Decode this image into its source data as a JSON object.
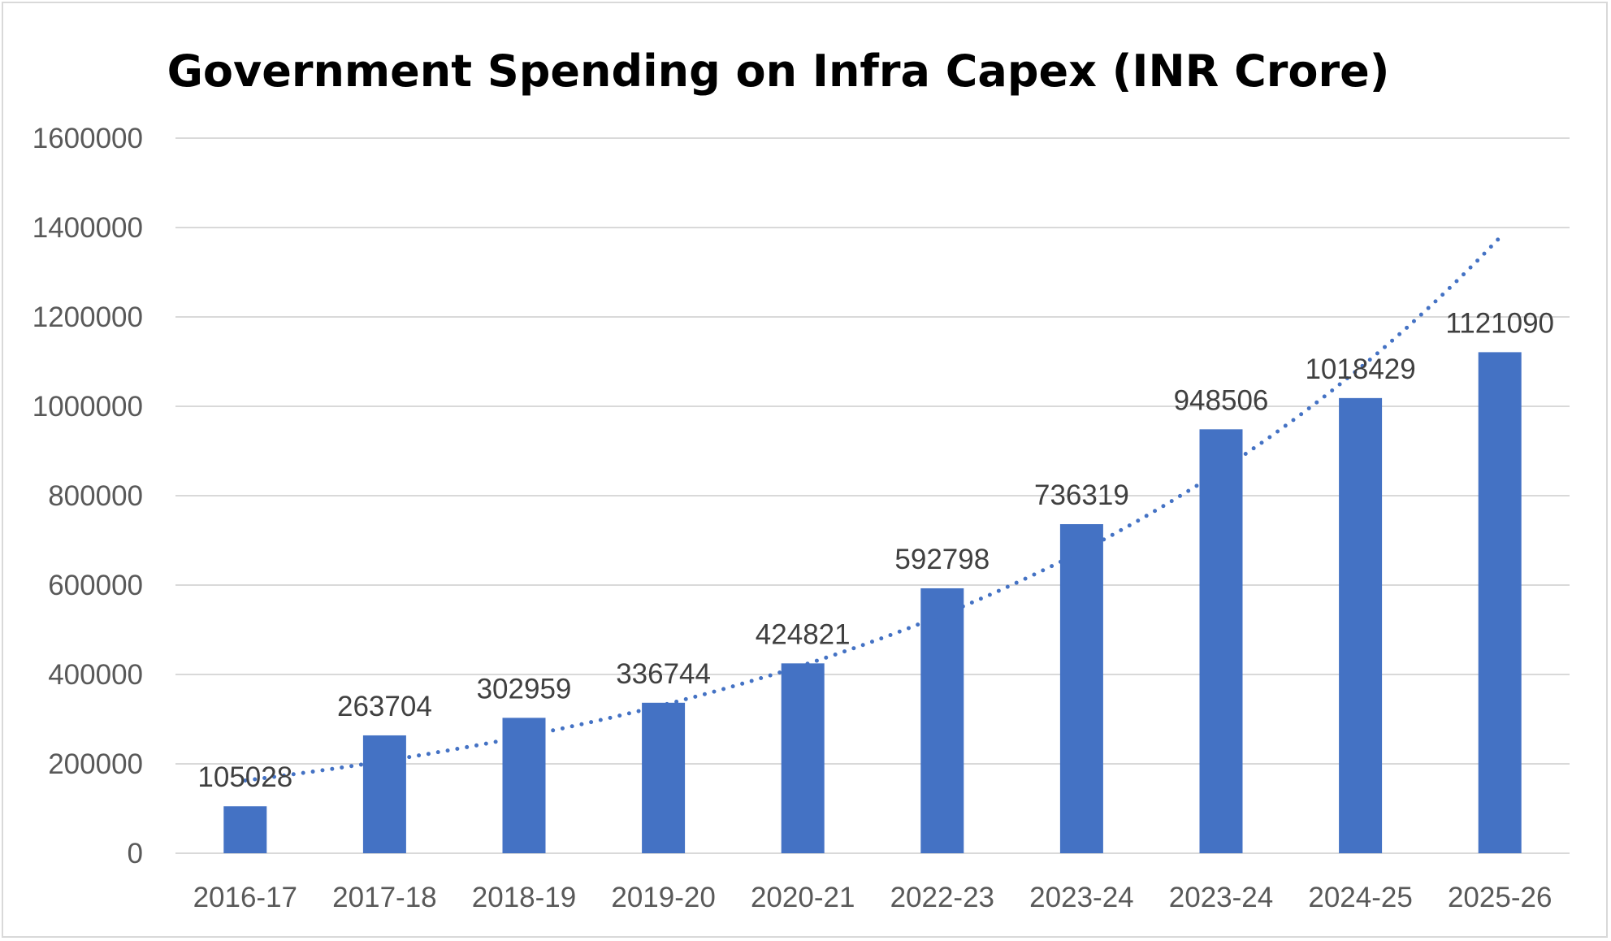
{
  "chart_data": {
    "type": "bar",
    "title": "Government Spending on Infra Capex (INR Crore)",
    "xlabel": "",
    "ylabel": "",
    "categories": [
      "2016-17",
      "2017-18",
      "2018-19",
      "2019-20",
      "2020-21",
      "2022-23",
      "2023-24",
      "2023-24",
      "2024-25",
      "2025-26"
    ],
    "series": [
      {
        "values": [
          105028,
          263704,
          302959,
          336744,
          424821,
          592798,
          736319,
          948506,
          1018429,
          1121090
        ],
        "color": "#4472c4",
        "data_labels": [
          "105028",
          "263704",
          "302959",
          "336744",
          "424821",
          "592798",
          "736319",
          "948506",
          "1018429",
          "1121090"
        ]
      }
    ],
    "trendline": {
      "style": "dotted",
      "kind": "exponential",
      "color": "#4472c4"
    },
    "ylim": [
      0,
      1600000
    ],
    "yticks": [
      0,
      200000,
      400000,
      600000,
      800000,
      1000000,
      1200000,
      1400000,
      1600000
    ],
    "ytick_labels": [
      "0",
      "200000",
      "400000",
      "600000",
      "800000",
      "1000000",
      "1200000",
      "1400000",
      "1600000"
    ],
    "grid": true,
    "legend": "none"
  },
  "colors": {
    "bar": "#4472c4",
    "gridline": "#d9d9d9",
    "axis_text": "#595959",
    "data_label_text": "#404040",
    "title_text": "#000000"
  }
}
